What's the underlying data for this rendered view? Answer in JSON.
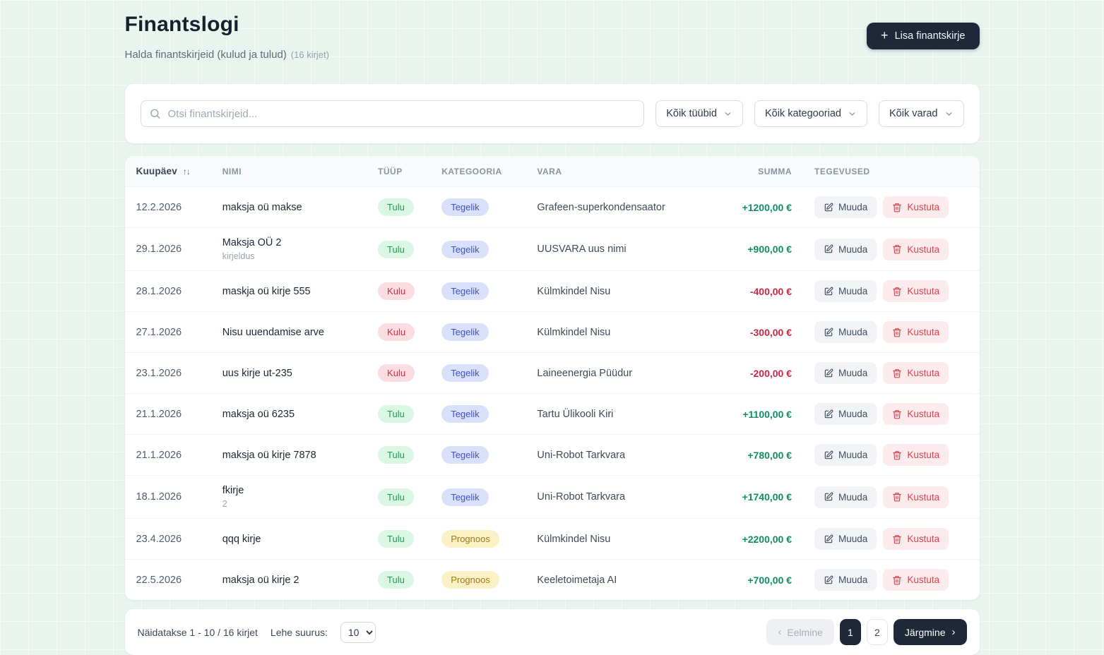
{
  "page": {
    "title": "Finantslogi",
    "subtitle": "Halda finantskirjeid (kulud ja tulud)",
    "subtitle_count": "(16 kirjet)",
    "add_button_label": "Lisa finantskirje",
    "add_button_icon": "+"
  },
  "filters": {
    "search_placeholder": "Otsi finantskirjeid...",
    "type_filter_value": "Kõik tüübid",
    "category_filter_value": "Kõik kategooriad",
    "asset_filter_value": "Kõik varad"
  },
  "table": {
    "columns": {
      "date": "Kuupäev",
      "name": "NIMI",
      "type": "TÜÜP",
      "category": "KATEGOORIA",
      "asset": "VARA",
      "amount": "SUMMA",
      "actions": "TEGEVUSED"
    },
    "sort_icon": "↑↓",
    "edit_label": "Muuda",
    "delete_label": "Kustuta",
    "rows": [
      {
        "date": "12.2.2026",
        "name": "maksja oü makse",
        "description": "",
        "type": "Tulu",
        "type_kind": "income",
        "category": "Tegelik",
        "category_kind": "actual",
        "asset": "Grafeen-superkondensaator",
        "amount": "+1200,00 €"
      },
      {
        "date": "29.1.2026",
        "name": "Maksja OÜ 2",
        "description": "kirjeldus",
        "type": "Tulu",
        "type_kind": "income",
        "category": "Tegelik",
        "category_kind": "actual",
        "asset": "UUSVARA uus nimi",
        "amount": "+900,00 €"
      },
      {
        "date": "28.1.2026",
        "name": "maskja oü kirje 555",
        "description": "",
        "type": "Kulu",
        "type_kind": "expense",
        "category": "Tegelik",
        "category_kind": "actual",
        "asset": "Külmkindel Nisu",
        "amount": "-400,00 €"
      },
      {
        "date": "27.1.2026",
        "name": "Nisu uuendamise arve",
        "description": "",
        "type": "Kulu",
        "type_kind": "expense",
        "category": "Tegelik",
        "category_kind": "actual",
        "asset": "Külmkindel Nisu",
        "amount": "-300,00 €"
      },
      {
        "date": "23.1.2026",
        "name": "uus kirje ut-235",
        "description": "",
        "type": "Kulu",
        "type_kind": "expense",
        "category": "Tegelik",
        "category_kind": "actual",
        "asset": "Laineenergia Püüdur",
        "amount": "-200,00 €"
      },
      {
        "date": "21.1.2026",
        "name": "maksja oü 6235",
        "description": "",
        "type": "Tulu",
        "type_kind": "income",
        "category": "Tegelik",
        "category_kind": "actual",
        "asset": "Tartu Ülikooli Kiri",
        "amount": "+1100,00 €"
      },
      {
        "date": "21.1.2026",
        "name": "maksja oü kirje 7878",
        "description": "",
        "type": "Tulu",
        "type_kind": "income",
        "category": "Tegelik",
        "category_kind": "actual",
        "asset": "Uni-Robot Tarkvara",
        "amount": "+780,00 €"
      },
      {
        "date": "18.1.2026",
        "name": "fkirje",
        "description": "2",
        "type": "Tulu",
        "type_kind": "income",
        "category": "Tegelik",
        "category_kind": "actual",
        "asset": "Uni-Robot Tarkvara",
        "amount": "+1740,00 €"
      },
      {
        "date": "23.4.2026",
        "name": "qqq kirje",
        "description": "",
        "type": "Tulu",
        "type_kind": "income",
        "category": "Prognoos",
        "category_kind": "forecast",
        "asset": "Külmkindel Nisu",
        "amount": "+2200,00 €"
      },
      {
        "date": "22.5.2026",
        "name": "maksja oü kirje 2",
        "description": "",
        "type": "Tulu",
        "type_kind": "income",
        "category": "Prognoos",
        "category_kind": "forecast",
        "asset": "Keeletoimetaja AI",
        "amount": "+700,00 €"
      }
    ]
  },
  "pagination": {
    "summary": "Näidatakse 1 - 10 / 16 kirjet",
    "page_size_label": "Lehe suurus:",
    "page_size_value": "10",
    "prev_label": "Eelmine",
    "next_label": "Järgmine",
    "prev_chevron": "‹",
    "next_chevron": "›",
    "pages": [
      "1",
      "2"
    ],
    "active_page": "1"
  },
  "colors": {
    "accent_dark": "#1f2838",
    "background": "#e9f4ee",
    "positive_amount": "#0e8f63",
    "negative_amount": "#cf2544",
    "badge_income_bg": "#d9f7e2",
    "badge_expense_bg": "#fbdde1",
    "badge_actual_bg": "#d8e0fa",
    "badge_forecast_bg": "#fcf0c5"
  }
}
